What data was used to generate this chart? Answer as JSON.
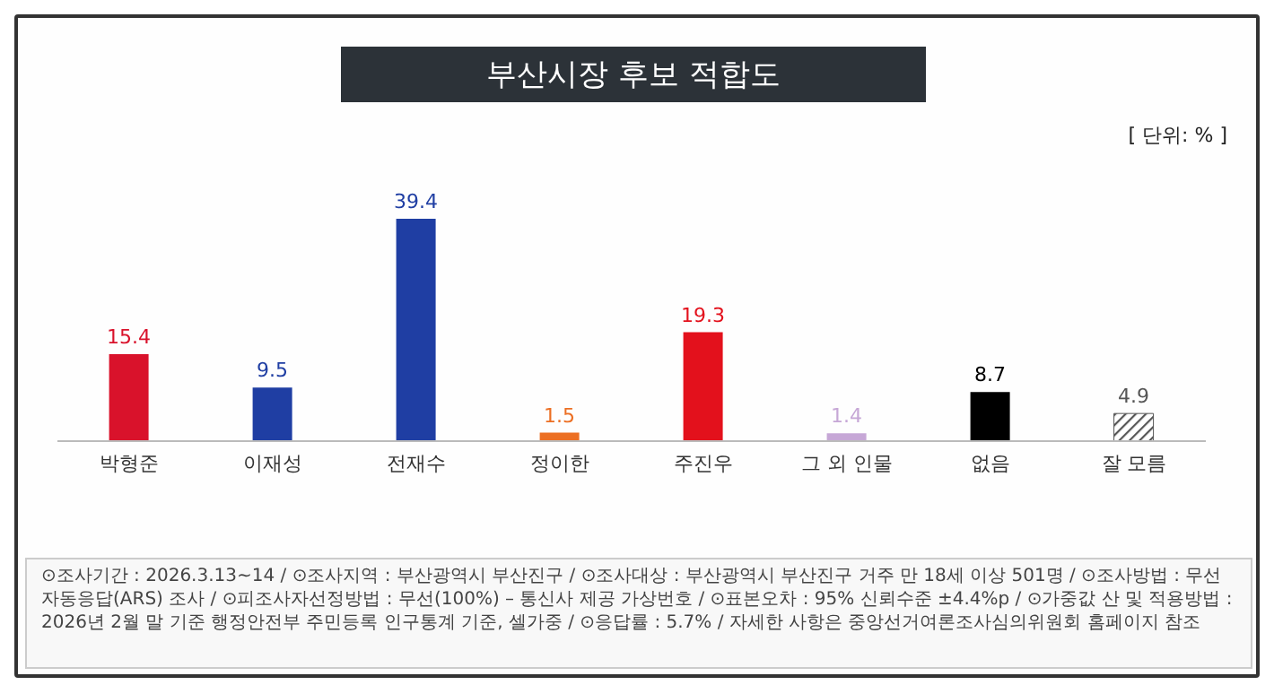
{
  "chart_data": {
    "type": "bar",
    "title": "부산시장 후보 적합도",
    "categories": [
      "박형준",
      "이재성",
      "전재수",
      "정이한",
      "주진우",
      "그 외 인물",
      "없음",
      "잘 모름"
    ],
    "values": [
      15.4,
      9.5,
      39.4,
      1.5,
      19.3,
      1.4,
      8.7,
      4.9
    ],
    "colors": [
      "#d9122b",
      "#1f3ea3",
      "#1f3ea3",
      "#ec6f23",
      "#e3111c",
      "#c6a7d6",
      "#000000",
      "#555555"
    ],
    "data_labels": true,
    "annotations": [
      "[ 단위: % ]",
      "⊙조사기간 : 2026.3.13~14 / ⊙조사지역 : 부산광역시 부산진구 / ⊙조사대상 : 부산광역시 부산진구 거주 만 18세 이상 501명 / ⊙조사방법 : 무선 자동응답(ARS) 조사 / ⊙피조사자선정방법 : 무선(100%) – 통신사 제공 가상번호 / ⊙표본오차 : 95% 신뢰수준 ±4.4%p / ⊙가중값 산 및 적용방법 : 2026년 2월 말 기준 행정안전부 주민등록 인구통계 기준, 셀가중 / ⊙응답률 : 5.7% / 자세한 사항은 중앙선거여론조사심의위원회 홈페이지 참조"
    ]
  }
}
